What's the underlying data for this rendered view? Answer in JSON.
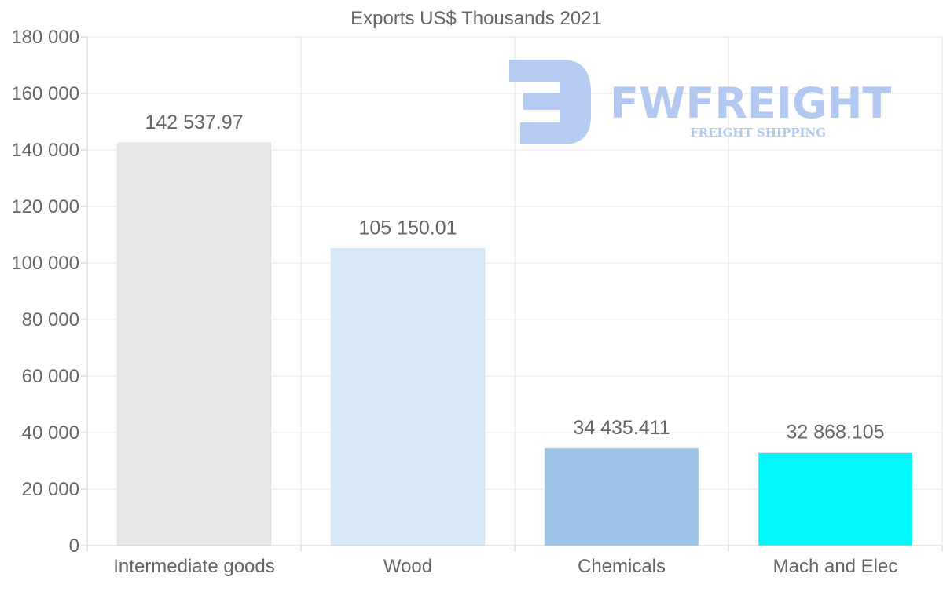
{
  "chart_data": {
    "type": "bar",
    "title": "Exports US$ Thousands 2021",
    "categories": [
      "Intermediate goods",
      "Wood",
      "Chemicals",
      "Mach and Elec"
    ],
    "values": [
      142537.97,
      105150.01,
      34435.411,
      32868.105
    ],
    "value_labels": [
      "142 537.97",
      "105 150.01",
      "34 435.411",
      "32 868.105"
    ],
    "colors": [
      "#e8e8e8",
      "#d6e8fa",
      "#9cc4e8",
      "#00f8f8"
    ],
    "ylim": [
      0,
      180000
    ],
    "yticks": [
      0,
      20000,
      40000,
      60000,
      80000,
      100000,
      120000,
      140000,
      160000,
      180000
    ],
    "ytick_labels": [
      "0",
      "20 000",
      "40 000",
      "60 000",
      "80 000",
      "100 000",
      "120 000",
      "140 000",
      "160 000",
      "180 000"
    ],
    "xlabel": "",
    "ylabel": "",
    "grid": true,
    "legend": "none"
  },
  "watermark": {
    "brand": "FWFREIGHT",
    "tagline": "FREIGHT SHIPPING",
    "color": "#b3c9f2"
  }
}
